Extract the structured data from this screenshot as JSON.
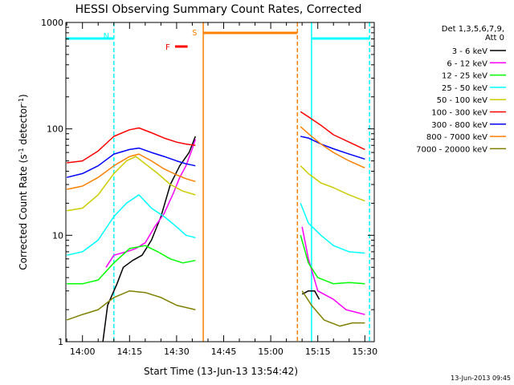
{
  "chart_data": {
    "type": "line",
    "title": "HESSI Observing Summary Count Rates, Corrected",
    "xlabel": "Start Time (13-Jun-13 13:54:42)",
    "ylabel_parts": {
      "prefix": "Corrected Count Rate (s",
      "exp1": "-1",
      "mid": " detector",
      "exp2": "-1",
      "suffix": ")"
    },
    "yscale": "log",
    "ylim": [
      1,
      1000
    ],
    "y_ticks": [
      {
        "value": 1,
        "label": "1"
      },
      {
        "value": 10,
        "label": "10"
      },
      {
        "value": 100,
        "label": "100"
      },
      {
        "value": 1000,
        "label": "1000"
      }
    ],
    "xlim": [
      "13:54:42",
      "15:33:00"
    ],
    "x_ticks": [
      {
        "time": "14:00",
        "label": "14:00"
      },
      {
        "time": "14:15",
        "label": "14:15"
      },
      {
        "time": "14:30",
        "label": "14:30"
      },
      {
        "time": "14:45",
        "label": "14:45"
      },
      {
        "time": "15:00",
        "label": "15:00"
      },
      {
        "time": "15:15",
        "label": "15:15"
      },
      {
        "time": "15:30",
        "label": "15:30"
      }
    ],
    "legend": {
      "position": "right",
      "header": [
        "Det 1,3,5,6,7,9,",
        "Att 0"
      ],
      "entries": [
        {
          "label": "3 - 6 keV",
          "color": "#000000"
        },
        {
          "label": "6 - 12 keV",
          "color": "#ff00ff"
        },
        {
          "label": "12 - 25 keV",
          "color": "#00ff00"
        },
        {
          "label": "25 - 50 keV",
          "color": "#00ffff"
        },
        {
          "label": "50 - 100 keV",
          "color": "#cccc00"
        },
        {
          "label": "100 - 300 keV",
          "color": "#ff0000"
        },
        {
          "label": "300 - 800 keV",
          "color": "#0000ff"
        },
        {
          "label": "800 - 7000 keV",
          "color": "#ff8000"
        },
        {
          "label": "7000 - 20000 keV",
          "color": "#808000"
        }
      ]
    },
    "series": [
      {
        "name": "3 - 6 keV",
        "color": "#000000",
        "segments": [
          [
            [
              "14:06:30",
              1.0
            ],
            [
              "14:08",
              2.2
            ],
            [
              "14:11",
              3.5
            ],
            [
              "14:13",
              5.0
            ],
            [
              "14:16",
              5.8
            ],
            [
              "14:19",
              6.5
            ],
            [
              "14:22",
              9.0
            ],
            [
              "14:25",
              15.0
            ],
            [
              "14:28",
              30.0
            ],
            [
              "14:31",
              45.0
            ],
            [
              "14:34",
              60.0
            ],
            [
              "14:36",
              85.0
            ]
          ],
          [
            [
              "15:10",
              2.8
            ],
            [
              "15:12",
              3.0
            ],
            [
              "15:14",
              3.0
            ],
            [
              "15:15:30",
              2.5
            ]
          ]
        ]
      },
      {
        "name": "6 - 12 keV",
        "color": "#ff00ff",
        "segments": [
          [
            [
              "14:07:30",
              5.0
            ],
            [
              "14:10",
              6.5
            ],
            [
              "14:14",
              7.0
            ],
            [
              "14:17",
              7.5
            ],
            [
              "14:20",
              8.5
            ],
            [
              "14:23",
              12.0
            ],
            [
              "14:26",
              16.0
            ],
            [
              "14:29",
              25.0
            ],
            [
              "14:31",
              35.0
            ],
            [
              "14:33",
              45.0
            ],
            [
              "14:35",
              65.0
            ],
            [
              "14:36",
              80.0
            ]
          ],
          [
            [
              "15:10",
              12.0
            ],
            [
              "15:12",
              6.0
            ],
            [
              "15:15",
              3.0
            ],
            [
              "15:20",
              2.5
            ],
            [
              "15:24",
              2.0
            ],
            [
              "15:30",
              1.8
            ]
          ]
        ]
      },
      {
        "name": "12 - 25 keV",
        "color": "#00ff00",
        "segments": [
          [
            [
              "13:55",
              3.5
            ],
            [
              "14:00",
              3.5
            ],
            [
              "14:05",
              3.8
            ],
            [
              "14:10",
              5.5
            ],
            [
              "14:15",
              7.5
            ],
            [
              "14:20",
              8.0
            ],
            [
              "14:24",
              7.0
            ],
            [
              "14:28",
              6.0
            ],
            [
              "14:32",
              5.5
            ],
            [
              "14:36",
              5.8
            ]
          ],
          [
            [
              "15:09:30",
              10.0
            ],
            [
              "15:12",
              5.5
            ],
            [
              "15:15",
              4.0
            ],
            [
              "15:20",
              3.5
            ],
            [
              "15:25",
              3.6
            ],
            [
              "15:30",
              3.5
            ]
          ]
        ]
      },
      {
        "name": "25 - 50 keV",
        "color": "#00ffff",
        "segments": [
          [
            [
              "13:55",
              6.5
            ],
            [
              "14:00",
              7.0
            ],
            [
              "14:05",
              9.0
            ],
            [
              "14:10",
              15.0
            ],
            [
              "14:14",
              20.0
            ],
            [
              "14:18",
              24.0
            ],
            [
              "14:22",
              18.0
            ],
            [
              "14:26",
              15.0
            ],
            [
              "14:30",
              12.0
            ],
            [
              "14:33",
              10.0
            ],
            [
              "14:36",
              9.5
            ]
          ],
          [
            [
              "15:09:30",
              20.0
            ],
            [
              "15:12",
              13.0
            ],
            [
              "15:16",
              10.0
            ],
            [
              "15:20",
              8.0
            ],
            [
              "15:25",
              7.0
            ],
            [
              "15:30",
              6.8
            ]
          ]
        ]
      },
      {
        "name": "50 - 100 keV",
        "color": "#cccc00",
        "segments": [
          [
            [
              "13:55",
              17.0
            ],
            [
              "14:00",
              18.0
            ],
            [
              "14:05",
              24.0
            ],
            [
              "14:10",
              38.0
            ],
            [
              "14:14",
              50.0
            ],
            [
              "14:17",
              55.0
            ],
            [
              "14:20",
              47.0
            ],
            [
              "14:24",
              38.0
            ],
            [
              "14:28",
              30.0
            ],
            [
              "14:32",
              26.0
            ],
            [
              "14:36",
              24.0
            ]
          ],
          [
            [
              "15:09:30",
              45.0
            ],
            [
              "15:12",
              38.0
            ],
            [
              "15:16",
              31.0
            ],
            [
              "15:20",
              28.0
            ],
            [
              "15:25",
              24.0
            ],
            [
              "15:30",
              21.0
            ]
          ]
        ]
      },
      {
        "name": "100 - 300 keV",
        "color": "#ff0000",
        "segments": [
          [
            [
              "13:55",
              48.0
            ],
            [
              "14:00",
              50.0
            ],
            [
              "14:05",
              62.0
            ],
            [
              "14:10",
              85.0
            ],
            [
              "14:15",
              98.0
            ],
            [
              "14:18",
              102.0
            ],
            [
              "14:22",
              92.0
            ],
            [
              "14:26",
              82.0
            ],
            [
              "14:30",
              75.0
            ],
            [
              "14:33",
              72.0
            ],
            [
              "14:36",
              70.0
            ]
          ],
          [
            [
              "15:09:30",
              145.0
            ],
            [
              "15:12",
              130.0
            ],
            [
              "15:16",
              108.0
            ],
            [
              "15:20",
              88.0
            ],
            [
              "15:25",
              75.0
            ],
            [
              "15:30",
              64.0
            ]
          ]
        ]
      },
      {
        "name": "300 - 800 keV",
        "color": "#0000ff",
        "segments": [
          [
            [
              "13:55",
              35.0
            ],
            [
              "14:00",
              38.0
            ],
            [
              "14:05",
              45.0
            ],
            [
              "14:10",
              58.0
            ],
            [
              "14:15",
              64.0
            ],
            [
              "14:18",
              66.0
            ],
            [
              "14:22",
              60.0
            ],
            [
              "14:26",
              55.0
            ],
            [
              "14:30",
              50.0
            ],
            [
              "14:33",
              47.0
            ],
            [
              "14:36",
              45.0
            ]
          ],
          [
            [
              "15:09:30",
              85.0
            ],
            [
              "15:12",
              82.0
            ],
            [
              "15:16",
              72.0
            ],
            [
              "15:20",
              65.0
            ],
            [
              "15:25",
              58.0
            ],
            [
              "15:30",
              52.0
            ]
          ]
        ]
      },
      {
        "name": "800 - 7000 keV",
        "color": "#ff8000",
        "segments": [
          [
            [
              "13:55",
              27.0
            ],
            [
              "14:00",
              29.0
            ],
            [
              "14:05",
              35.0
            ],
            [
              "14:10",
              45.0
            ],
            [
              "14:15",
              55.0
            ],
            [
              "14:18",
              58.0
            ],
            [
              "14:22",
              50.0
            ],
            [
              "14:26",
              42.0
            ],
            [
              "14:30",
              37.0
            ],
            [
              "14:33",
              34.0
            ],
            [
              "14:36",
              32.0
            ]
          ],
          [
            [
              "15:09:30",
              105.0
            ],
            [
              "15:12",
              90.0
            ],
            [
              "15:16",
              72.0
            ],
            [
              "15:20",
              60.0
            ],
            [
              "15:25",
              50.0
            ],
            [
              "15:30",
              43.0
            ]
          ]
        ]
      },
      {
        "name": "7000 - 20000 keV",
        "color": "#808000",
        "segments": [
          [
            [
              "13:55",
              1.6
            ],
            [
              "14:00",
              1.8
            ],
            [
              "14:05",
              2.0
            ],
            [
              "14:10",
              2.6
            ],
            [
              "14:15",
              3.0
            ],
            [
              "14:20",
              2.9
            ],
            [
              "14:25",
              2.6
            ],
            [
              "14:30",
              2.2
            ],
            [
              "14:36",
              2.0
            ]
          ],
          [
            [
              "15:10",
              3.0
            ],
            [
              "15:13",
              2.2
            ],
            [
              "15:17",
              1.6
            ],
            [
              "15:22",
              1.4
            ],
            [
              "15:26",
              1.5
            ],
            [
              "15:30",
              1.5
            ]
          ]
        ]
      }
    ],
    "annotations": {
      "night_bars": [
        {
          "label": "N",
          "start": "13:54:42",
          "end": "14:10:00",
          "color": "#00ffff"
        },
        {
          "label": "",
          "start": "15:13:00",
          "end": "15:31:30",
          "color": "#00ffff"
        }
      ],
      "saa_bar": {
        "label": "S",
        "start": "14:38:30",
        "end": "15:08:30",
        "color": "#ff8000"
      },
      "flare_marker": {
        "label": "F",
        "start": "14:29:30",
        "end": "14:33:30",
        "color": "#ff0000"
      },
      "vertical_lines": [
        {
          "time": "14:10:00",
          "color": "#00ffff",
          "style": "dashed"
        },
        {
          "time": "14:38:30",
          "color": "#ff8000",
          "style": "solid"
        },
        {
          "time": "15:08:30",
          "color": "#ff8000",
          "style": "dashed"
        },
        {
          "time": "15:13:00",
          "color": "#00ffff",
          "style": "solid"
        },
        {
          "time": "15:31:30",
          "color": "#00ffff",
          "style": "dashed"
        }
      ]
    },
    "footer_date": "13-Jun-2013 09:45"
  }
}
